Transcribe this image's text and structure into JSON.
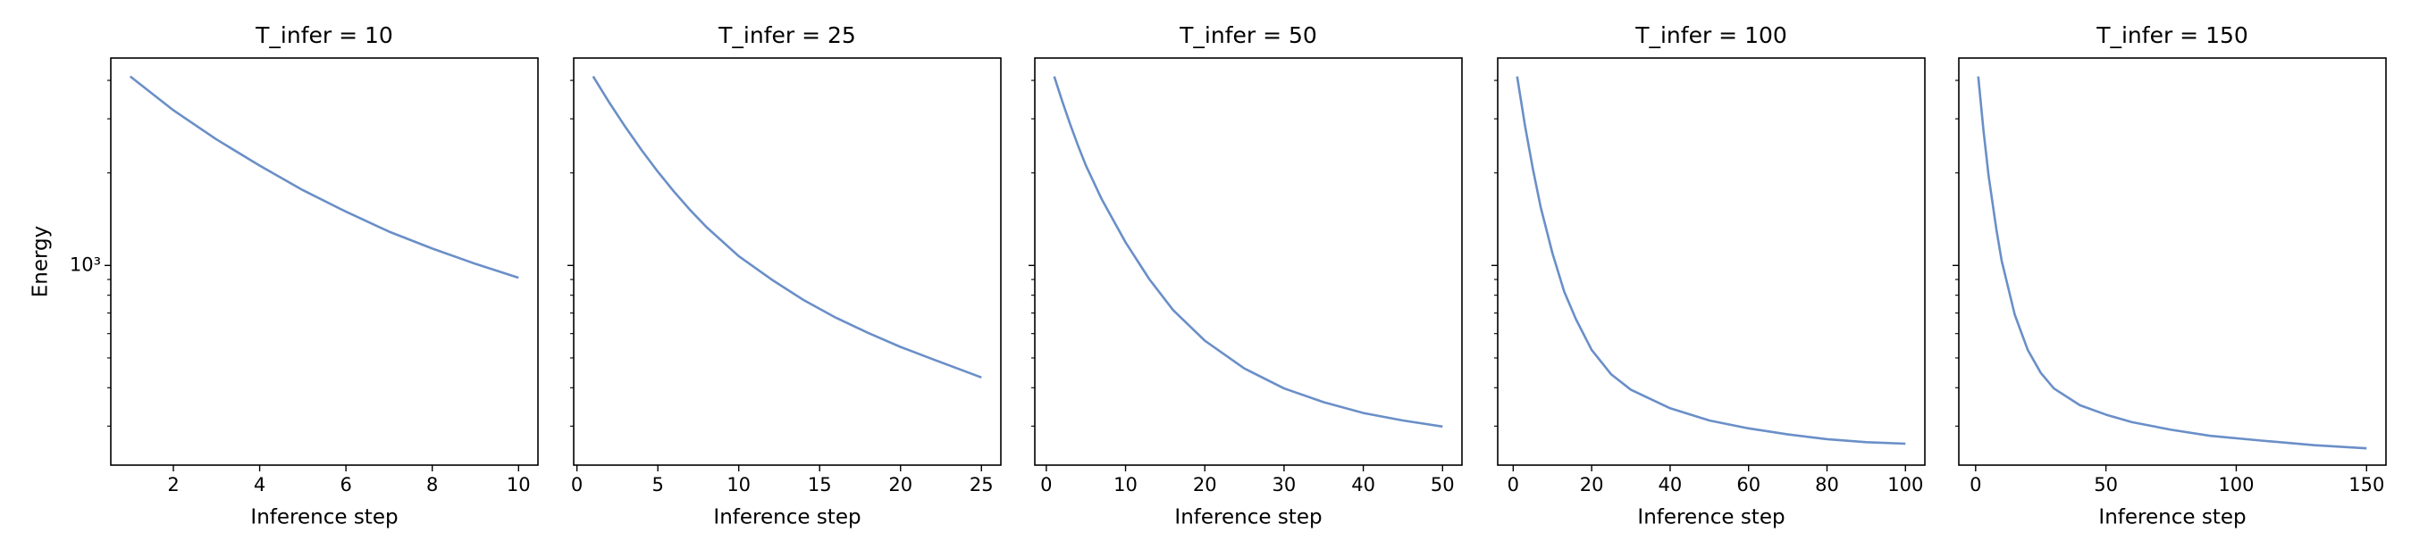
{
  "chart_data": [
    {
      "type": "line",
      "title": "T_infer = 10",
      "x_label": "Inference step",
      "y_label": "Energy",
      "yscale": "log",
      "color": "#6a8fc8",
      "x": [
        1,
        2,
        3,
        4,
        5,
        6,
        7,
        8,
        9,
        10
      ],
      "values": [
        4121,
        3199,
        2570,
        2113,
        1758,
        1496,
        1288,
        1135,
        1012,
        912
      ],
      "xlim": [
        0.55,
        10.45
      ],
      "xticks": [
        2,
        4,
        6,
        8,
        10
      ],
      "ylim": [
        224,
        4730
      ],
      "yticks": [
        {
          "value": 1000,
          "label": "10³"
        }
      ],
      "y_minor_ticks": [
        300,
        400,
        500,
        600,
        700,
        800,
        900,
        2000,
        3000,
        4000
      ]
    },
    {
      "type": "line",
      "title": "T_infer = 25",
      "x_label": "Inference step",
      "yscale": "log",
      "color": "#6a8fc8",
      "x": [
        1,
        2,
        3,
        4,
        5,
        6,
        7,
        8,
        10,
        12,
        14,
        16,
        18,
        20,
        22,
        25
      ],
      "values": [
        4121,
        3388,
        2818,
        2371,
        2018,
        1738,
        1514,
        1334,
        1072,
        902,
        772,
        676,
        603,
        543,
        495,
        432
      ],
      "xlim": [
        -0.2,
        26.2
      ],
      "xticks": [
        0,
        5,
        10,
        15,
        20,
        25
      ],
      "ylim": [
        224,
        4730
      ],
      "y_tick_marks": [
        300,
        400,
        500,
        600,
        700,
        800,
        900,
        1000,
        2000,
        3000,
        4000
      ]
    },
    {
      "type": "line",
      "title": "T_infer = 50",
      "x_label": "Inference step",
      "yscale": "log",
      "color": "#6a8fc8",
      "x": [
        1,
        2,
        3,
        4,
        5,
        7,
        10,
        13,
        16,
        20,
        25,
        30,
        35,
        40,
        45,
        50
      ],
      "values": [
        4121,
        3428,
        2884,
        2455,
        2113,
        1641,
        1189,
        902,
        716,
        569,
        462,
        398,
        359,
        331,
        313,
        299
      ],
      "xlim": [
        -1.45,
        52.45
      ],
      "xticks": [
        0,
        10,
        20,
        30,
        40,
        50
      ],
      "ylim": [
        224,
        4730
      ],
      "y_tick_marks": [
        300,
        400,
        500,
        600,
        700,
        800,
        900,
        1000,
        2000,
        3000,
        4000
      ]
    },
    {
      "type": "line",
      "title": "T_infer = 100",
      "x_label": "Inference step",
      "yscale": "log",
      "color": "#6a8fc8",
      "x": [
        1,
        2,
        3,
        5,
        7,
        10,
        13,
        16,
        20,
        25,
        30,
        40,
        50,
        60,
        70,
        80,
        90,
        100
      ],
      "values": [
        4121,
        3428,
        2851,
        2065,
        1549,
        1096,
        822,
        668,
        531,
        442,
        394,
        343,
        313,
        295,
        282,
        272,
        266,
        263
      ],
      "xlim": [
        -3.95,
        104.95
      ],
      "xticks": [
        0,
        20,
        40,
        60,
        80,
        100
      ],
      "ylim": [
        224,
        4730
      ],
      "y_tick_marks": [
        300,
        400,
        500,
        600,
        700,
        800,
        900,
        1000,
        2000,
        3000,
        4000
      ]
    },
    {
      "type": "line",
      "title": "T_infer = 150",
      "x_label": "Inference step",
      "yscale": "log",
      "color": "#6a8fc8",
      "x": [
        1,
        3,
        5,
        8,
        10,
        15,
        20,
        25,
        30,
        40,
        50,
        60,
        75,
        90,
        110,
        130,
        150
      ],
      "values": [
        4121,
        2754,
        1950,
        1303,
        1035,
        692,
        531,
        447,
        398,
        351,
        327,
        309,
        292,
        279,
        269,
        260,
        254
      ],
      "xlim": [
        -6.45,
        157.45
      ],
      "xticks": [
        0,
        50,
        100,
        150
      ],
      "ylim": [
        224,
        4730
      ],
      "y_tick_marks": [
        300,
        400,
        500,
        600,
        700,
        800,
        900,
        1000,
        2000,
        3000,
        4000
      ]
    }
  ]
}
